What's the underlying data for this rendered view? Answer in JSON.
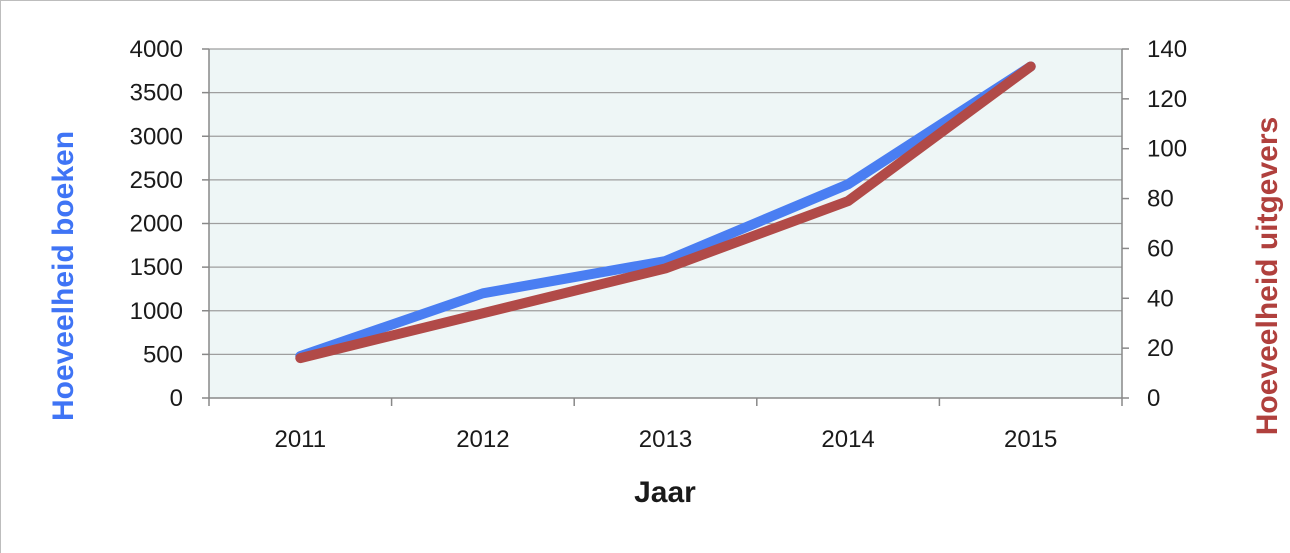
{
  "chart_data": {
    "type": "line",
    "xlabel": "Jaar",
    "ylabel": "Hoeveelheid boeken",
    "y2label": "Hoeveelheid uitgevers",
    "categories": [
      "2011",
      "2012",
      "2013",
      "2014",
      "2015"
    ],
    "ylim": [
      0,
      4000
    ],
    "y2lim": [
      0,
      140
    ],
    "yticks": [
      "0",
      "500",
      "1000",
      "1500",
      "2000",
      "2500",
      "3000",
      "3500",
      "4000"
    ],
    "y2ticks": [
      "0",
      "20",
      "40",
      "60",
      "80",
      "100",
      "120",
      "140"
    ],
    "grid": true,
    "series": [
      {
        "axis": "left",
        "values": [
          480,
          1200,
          1570,
          2450,
          3800
        ],
        "color": "#4a7ef2"
      },
      {
        "axis": "right",
        "values": [
          16,
          34,
          52,
          79,
          133
        ],
        "color": "#b14a48"
      }
    ],
    "plot_background": "#eef6f6",
    "left_title_color": "#3f74f5",
    "right_title_color": "#b0403d"
  }
}
